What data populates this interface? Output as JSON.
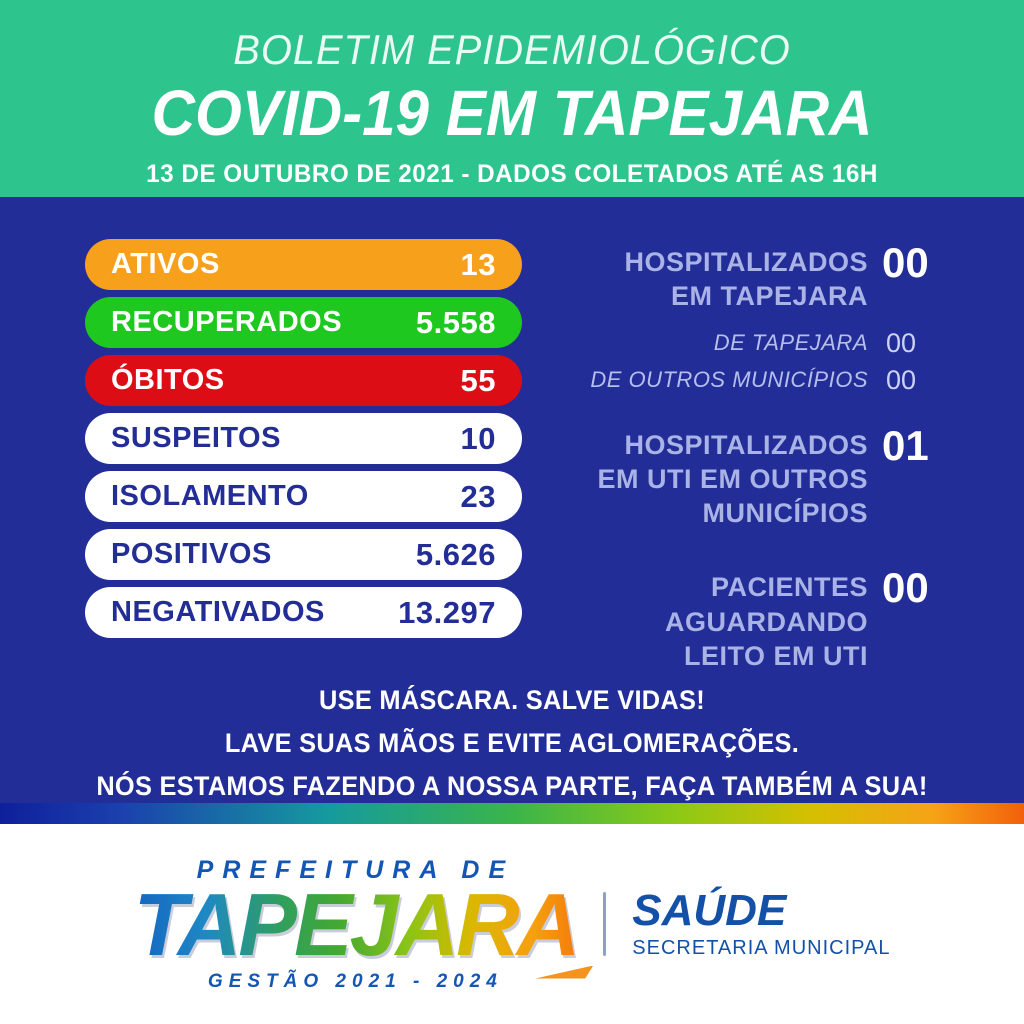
{
  "header": {
    "kicker": "BOLETIM EPIDEMIOLÓGICO",
    "title": "COVID-19 EM TAPEJARA",
    "subtitle": "13 DE OUTUBRO DE 2021 - DADOS COLETADOS ATÉ AS 16H"
  },
  "stats": {
    "pills": [
      {
        "label": "ATIVOS",
        "value": "13",
        "bg": "#F7A01B",
        "fg": "#FFFFFF"
      },
      {
        "label": "RECUPERADOS",
        "value": "5.558",
        "bg": "#1EC81E",
        "fg": "#FFFFFF"
      },
      {
        "label": "ÓBITOS",
        "value": "55",
        "bg": "#DC0D14",
        "fg": "#FFFFFF"
      },
      {
        "label": "SUSPEITOS",
        "value": "10",
        "bg": "#FFFFFF",
        "fg": "#232D96"
      },
      {
        "label": "ISOLAMENTO",
        "value": "23",
        "bg": "#FFFFFF",
        "fg": "#232D96"
      },
      {
        "label": "POSITIVOS",
        "value": "5.626",
        "bg": "#FFFFFF",
        "fg": "#232D96"
      },
      {
        "label": "NEGATIVADOS",
        "value": "13.297",
        "bg": "#FFFFFF",
        "fg": "#232D96"
      }
    ],
    "hospital": [
      {
        "label": "HOSPITALIZADOS\nEM TAPEJARA",
        "value": "00",
        "sub": [
          {
            "label": "DE TAPEJARA",
            "value": "00"
          },
          {
            "label": "DE OUTROS MUNICÍPIOS",
            "value": "00"
          }
        ]
      },
      {
        "label": "HOSPITALIZADOS\nEM UTI EM OUTROS\nMUNICÍPIOS",
        "value": "01"
      },
      {
        "label": "PACIENTES\nAGUARDANDO\nLEITO EM UTI",
        "value": "00"
      }
    ]
  },
  "message": {
    "line1": "USE MÁSCARA. SALVE VIDAS!",
    "line2": "LAVE SUAS MÃOS E EVITE AGLOMERAÇÕES.",
    "line3": "NÓS ESTAMOS FAZENDO A NOSSA PARTE, FAÇA TAMBÉM A SUA!"
  },
  "footer": {
    "prefeitura": "PREFEITURA DE",
    "city": "TAPEJARA",
    "gestao": "GESTÃO 2021 - 2024",
    "dept": "SAÚDE",
    "dept_sub": "SECRETARIA MUNICIPAL"
  },
  "palette": {
    "teal": "#2EC48E",
    "royal_blue": "#232D97",
    "lavender": "#A9B3E6",
    "white": "#FFFFFF",
    "footer_blue": "#1356B4",
    "rainbow": [
      "#0E1F9B",
      "#1B41AD",
      "#159A9E",
      "#3AB54A",
      "#8CC916",
      "#D4C000",
      "#F6A316",
      "#F2600B"
    ]
  }
}
